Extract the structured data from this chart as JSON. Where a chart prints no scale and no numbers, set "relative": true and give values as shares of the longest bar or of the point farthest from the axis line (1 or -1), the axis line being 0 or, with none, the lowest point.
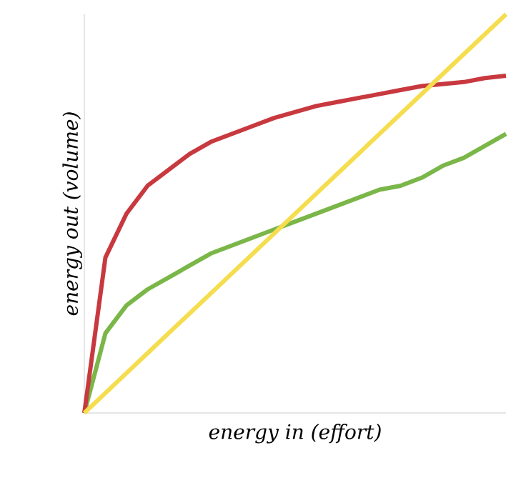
{
  "chart_data": {
    "type": "line",
    "relative": true,
    "xlabel": "energy in (effort)",
    "ylabel": "energy out (volume)",
    "categories": [
      null,
      null,
      null,
      null,
      null,
      null,
      null,
      null,
      null,
      null,
      null,
      null,
      null,
      null,
      null,
      null,
      null,
      null,
      null,
      null,
      null
    ],
    "series": [
      {
        "color": "#7ab648",
        "values": [
          0,
          0.2,
          0.27,
          0.31,
          0.34,
          0.37,
          0.4,
          0.42,
          0.44,
          0.46,
          0.48,
          0.5,
          0.52,
          0.54,
          0.56,
          0.57,
          0.59,
          0.62,
          0.64,
          0.67,
          0.7
        ]
      },
      {
        "color": "#c8393f",
        "values": [
          0,
          0.39,
          0.5,
          0.57,
          0.61,
          0.65,
          0.68,
          0.7,
          0.72,
          0.74,
          0.755,
          0.77,
          0.78,
          0.79,
          0.8,
          0.81,
          0.82,
          0.825,
          0.83,
          0.84,
          0.846
        ]
      },
      {
        "color": "#f5dd4e",
        "values": [
          0,
          0.05,
          0.1,
          0.15,
          0.2,
          0.25,
          0.3,
          0.35,
          0.4,
          0.45,
          0.5,
          0.55,
          0.6,
          0.65,
          0.7,
          0.75,
          0.8,
          0.85,
          0.9,
          0.95,
          1.0
        ]
      }
    ]
  }
}
